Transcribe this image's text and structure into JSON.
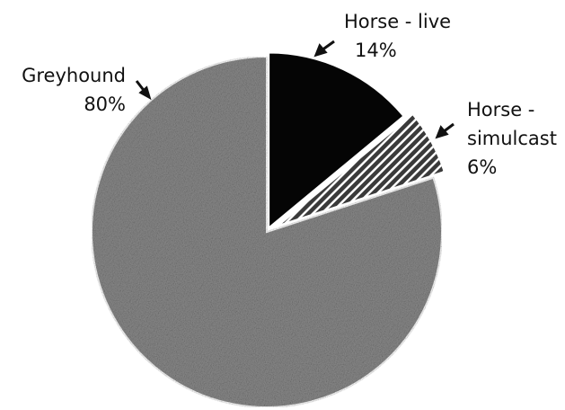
{
  "chart_data": {
    "type": "pie",
    "categories": [
      "Horse - live",
      "Horse - simulcast",
      "Greyhound"
    ],
    "values": [
      14,
      6,
      80
    ],
    "value_labels": [
      "14%",
      "6%",
      "80%"
    ],
    "colors": [
      "#050505",
      "#3a3a3a",
      "#8c8c8c"
    ]
  }
}
